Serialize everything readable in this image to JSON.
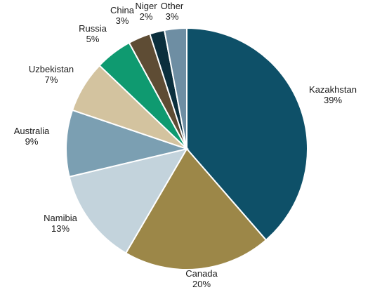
{
  "chart_data": {
    "type": "pie",
    "title": "",
    "slices": [
      {
        "label": "Kazakhstan",
        "pct_label": "39%",
        "value": 39,
        "color": "#0e5068"
      },
      {
        "label": "Canada",
        "pct_label": "20%",
        "value": 20,
        "color": "#9c8748"
      },
      {
        "label": "Namibia",
        "pct_label": "13%",
        "value": 13,
        "color": "#c3d3dc"
      },
      {
        "label": "Australia",
        "pct_label": "9%",
        "value": 9,
        "color": "#7b9fb2"
      },
      {
        "label": "Uzbekistan",
        "pct_label": "7%",
        "value": 7,
        "color": "#d3c39f"
      },
      {
        "label": "Russia",
        "pct_label": "5%",
        "value": 5,
        "color": "#0f9a70"
      },
      {
        "label": "China",
        "pct_label": "3%",
        "value": 3,
        "color": "#5e4c34"
      },
      {
        "label": "Niger",
        "pct_label": "2%",
        "value": 2,
        "color": "#0b2f3d"
      },
      {
        "label": "Other",
        "pct_label": "3%",
        "value": 3,
        "color": "#6e8ea3"
      }
    ]
  }
}
